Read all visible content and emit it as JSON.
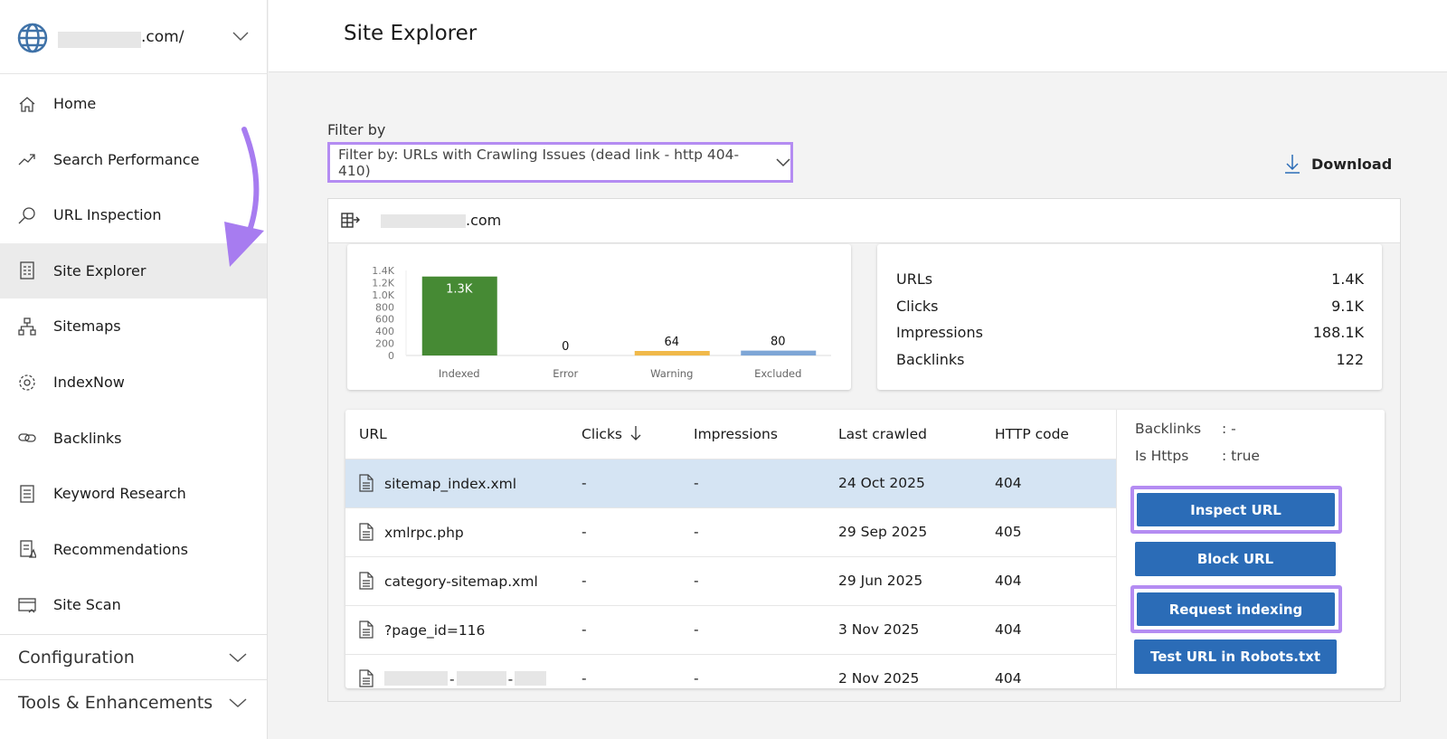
{
  "sidebar": {
    "site_suffix": ".com/",
    "items": [
      {
        "label": "Home",
        "icon": "home-icon"
      },
      {
        "label": "Search Performance",
        "icon": "trend-icon"
      },
      {
        "label": "URL Inspection",
        "icon": "search-icon"
      },
      {
        "label": "Site Explorer",
        "icon": "document-list-icon",
        "selected": true
      },
      {
        "label": "Sitemaps",
        "icon": "sitemap-icon"
      },
      {
        "label": "IndexNow",
        "icon": "gear-icon"
      },
      {
        "label": "Backlinks",
        "icon": "link-icon"
      },
      {
        "label": "Keyword Research",
        "icon": "document-icon"
      },
      {
        "label": "Recommendations",
        "icon": "recommendation-icon"
      },
      {
        "label": "Site Scan",
        "icon": "scan-icon"
      }
    ],
    "sections": [
      "Configuration",
      "Tools & Enhancements"
    ]
  },
  "header": {
    "title": "Site Explorer"
  },
  "filter": {
    "label": "Filter by",
    "value": "Filter by: URLs with Crawling Issues (dead link - http 404-410)",
    "download": "Download"
  },
  "domain": {
    "suffix": ".com"
  },
  "chart_data": {
    "type": "bar",
    "categories": [
      "Indexed",
      "Error",
      "Warning",
      "Excluded"
    ],
    "values": [
      1300,
      0,
      64,
      80
    ],
    "data_labels": [
      "1.3K",
      "0",
      "64",
      "80"
    ],
    "colors": [
      "#468a34",
      "#d9534f",
      "#f0b94a",
      "#7ea6d6"
    ],
    "y_ticks": [
      "0",
      "200",
      "400",
      "600",
      "800",
      "1.0K",
      "1.2K",
      "1.4K"
    ],
    "ylim": [
      0,
      1400
    ]
  },
  "stats": [
    {
      "label": "URLs",
      "value": "1.4K"
    },
    {
      "label": "Clicks",
      "value": "9.1K"
    },
    {
      "label": "Impressions",
      "value": "188.1K"
    },
    {
      "label": "Backlinks",
      "value": "122"
    }
  ],
  "table": {
    "columns": [
      "URL",
      "Clicks",
      "Impressions",
      "Last crawled",
      "HTTP code"
    ],
    "sort_icon": "arrow-down-icon",
    "rows": [
      {
        "url": "sitemap_index.xml",
        "clicks": "-",
        "impressions": "-",
        "last_crawled": "24 Oct 2025",
        "http": "404",
        "selected": true
      },
      {
        "url": "xmlrpc.php",
        "clicks": "-",
        "impressions": "-",
        "last_crawled": "29 Sep 2025",
        "http": "405"
      },
      {
        "url": "category-sitemap.xml",
        "clicks": "-",
        "impressions": "-",
        "last_crawled": "29 Jun 2025",
        "http": "404"
      },
      {
        "url": "?page_id=116",
        "clicks": "-",
        "impressions": "-",
        "last_crawled": "3 Nov 2025",
        "http": "404"
      },
      {
        "url": "- -",
        "clicks": "-",
        "impressions": "-",
        "last_crawled": "2 Nov 2025",
        "http": "404"
      }
    ]
  },
  "details": [
    {
      "label": "Backlinks",
      "value": ": -"
    },
    {
      "label": "Is Https",
      "value": ": true"
    }
  ],
  "actions": {
    "inspect": "Inspect URL",
    "block": "Block URL",
    "request": "Request indexing",
    "robots": "Test URL in Robots.txt"
  },
  "accent": "#b48cf2"
}
